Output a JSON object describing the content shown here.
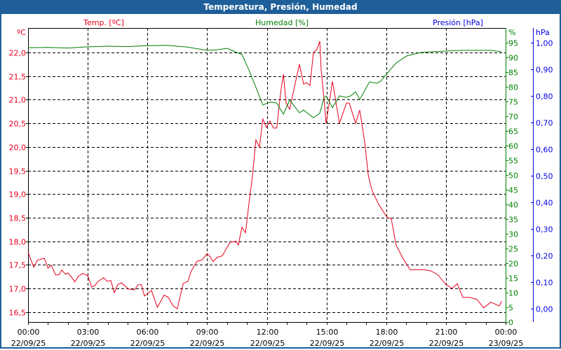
{
  "chart_data": {
    "type": "line",
    "title": "Temperatura, Presión, Humedad",
    "x_unit": "hours since 22/09/25 00:00",
    "x_ticks": [
      {
        "time": "00:00",
        "date": "22/09/25"
      },
      {
        "time": "03:00",
        "date": "22/09/25"
      },
      {
        "time": "06:00",
        "date": "22/09/25"
      },
      {
        "time": "09:00",
        "date": "22/09/25"
      },
      {
        "time": "12:00",
        "date": "22/09/25"
      },
      {
        "time": "15:00",
        "date": "22/09/25"
      },
      {
        "time": "18:00",
        "date": "22/09/25"
      },
      {
        "time": "21:00",
        "date": "22/09/25"
      },
      {
        "time": "00:00",
        "date": "23/09/25"
      }
    ],
    "xlim": [
      0,
      24
    ],
    "grid": true,
    "axes": {
      "temp": {
        "label": "Temp. [ºC]",
        "unit": "ºC",
        "color": "#e8001c",
        "ylim": [
          16.29,
          22.52
        ],
        "ticks": [
          "16,5",
          "17,0",
          "17,5",
          "18,0",
          "18,5",
          "19,0",
          "19,5",
          "20,0",
          "20,5",
          "21,0",
          "21,5",
          "22,0"
        ],
        "tick_values": [
          16.5,
          17,
          17.5,
          18,
          18.5,
          19,
          19.5,
          20,
          20.5,
          21,
          21.5,
          22
        ]
      },
      "hum": {
        "label": "Humedad [%]",
        "unit": "%",
        "color": "#008000",
        "ylim": [
          0,
          100
        ],
        "ticks": [
          "0",
          "5",
          "10",
          "15",
          "20",
          "25",
          "30",
          "35",
          "40",
          "45",
          "50",
          "55",
          "60",
          "65",
          "70",
          "75",
          "80",
          "85",
          "90",
          "95"
        ],
        "tick_values": [
          0,
          5,
          10,
          15,
          20,
          25,
          30,
          35,
          40,
          45,
          50,
          55,
          60,
          65,
          70,
          75,
          80,
          85,
          90,
          95
        ]
      },
      "pres": {
        "label": "Presión [hPa]",
        "unit": "hPa",
        "color": "#0000e0",
        "ylim": [
          -0.05,
          1.055
        ],
        "ticks": [
          "0,00",
          "0,10",
          "0,20",
          "0,30",
          "0,40",
          "0,50",
          "0,60",
          "0,70",
          "0,80",
          "0,90",
          "1,00"
        ],
        "tick_values": [
          0,
          0.1,
          0.2,
          0.3,
          0.4,
          0.5,
          0.6,
          0.7,
          0.8,
          0.9,
          1.0
        ]
      }
    },
    "series": [
      {
        "name": "Temp. [ºC]",
        "axis": "temp",
        "color": "#e8001c",
        "x": [
          0,
          0.29,
          0.47,
          0.82,
          1.0,
          1.17,
          1.38,
          1.55,
          1.7,
          1.88,
          2.0,
          2.2,
          2.35,
          2.53,
          2.75,
          3.0,
          3.2,
          3.35,
          3.52,
          3.8,
          3.98,
          4.16,
          4.34,
          4.5,
          4.7,
          5.04,
          5.35,
          5.53,
          5.7,
          5.85,
          6.0,
          6.2,
          6.5,
          6.84,
          7.05,
          7.3,
          7.5,
          7.8,
          8.03,
          8.2,
          8.5,
          8.74,
          9.0,
          9.16,
          9.3,
          9.5,
          9.76,
          10.15,
          10.45,
          10.57,
          10.75,
          10.93,
          11.1,
          11.28,
          11.45,
          11.63,
          11.8,
          11.98,
          12.16,
          12.33,
          12.5,
          12.69,
          12.83,
          12.97,
          13.15,
          13.4,
          13.64,
          13.85,
          14.0,
          14.17,
          14.34,
          14.52,
          14.66,
          14.73,
          14.87,
          14.98,
          15.08,
          15.3,
          15.44,
          15.65,
          16.0,
          16.14,
          16.46,
          16.67,
          16.92,
          17.1,
          17.27,
          17.6,
          17.9,
          18.08,
          18.25,
          18.5,
          18.85,
          19.2,
          19.56,
          19.9,
          20.26,
          20.6,
          20.97,
          21.3,
          21.57,
          21.85,
          22.2,
          22.55,
          22.9,
          23.26,
          23.68,
          23.8
        ],
        "y": [
          17.77,
          17.45,
          17.6,
          17.64,
          17.43,
          17.49,
          17.29,
          17.29,
          17.39,
          17.3,
          17.33,
          17.23,
          17.14,
          17.26,
          17.32,
          17.27,
          17.03,
          17.06,
          17.15,
          17.23,
          17.15,
          17.17,
          16.91,
          17.08,
          17.12,
          16.99,
          16.97,
          17.08,
          17.08,
          16.84,
          16.89,
          16.96,
          16.6,
          16.86,
          16.81,
          16.63,
          16.57,
          17.11,
          17.15,
          17.37,
          17.58,
          17.6,
          17.74,
          17.67,
          17.57,
          17.66,
          17.69,
          17.98,
          18.0,
          17.92,
          18.3,
          18.18,
          18.8,
          19.4,
          20.15,
          20.0,
          20.59,
          20.41,
          20.55,
          20.4,
          20.4,
          21.14,
          21.54,
          20.93,
          20.8,
          21.29,
          21.75,
          21.33,
          21.36,
          21.3,
          22.0,
          22.07,
          22.24,
          21.63,
          21.04,
          20.5,
          20.78,
          21.39,
          21.04,
          20.5,
          20.93,
          20.93,
          20.5,
          20.78,
          20.1,
          19.4,
          19.1,
          18.8,
          18.6,
          18.49,
          18.49,
          17.92,
          17.63,
          17.4,
          17.4,
          17.4,
          17.37,
          17.29,
          17.1,
          17.0,
          17.1,
          16.81,
          16.81,
          16.77,
          16.59,
          16.71,
          16.63,
          16.73
        ]
      },
      {
        "name": "Humedad [%]",
        "axis": "hum",
        "color": "#008000",
        "x": [
          0,
          1,
          2,
          3,
          4,
          5,
          6,
          7,
          8,
          9,
          9.5,
          10,
          10.4,
          10.75,
          11.1,
          11.45,
          11.8,
          12.16,
          12.5,
          12.83,
          13.15,
          13.64,
          13.85,
          14.34,
          14.66,
          14.87,
          14.98,
          15.3,
          15.65,
          16.0,
          16.21,
          16.46,
          16.67,
          17.16,
          17.52,
          17.73,
          17.97,
          18.5,
          19.03,
          19.74,
          20.8,
          21.85,
          23.26,
          23.8
        ],
        "y": [
          93.3,
          93.4,
          93.2,
          93.6,
          93.8,
          93.7,
          94.0,
          94.1,
          93.5,
          92.4,
          92.6,
          93.1,
          91.9,
          91.0,
          85.7,
          79.8,
          73.8,
          74.8,
          74.5,
          70.7,
          75.5,
          71.2,
          72.1,
          69.5,
          71.0,
          76.2,
          76.9,
          72.9,
          76.9,
          76.4,
          76.9,
          78.3,
          75.7,
          81.7,
          81.2,
          81.9,
          84.0,
          88.1,
          90.5,
          91.7,
          92.1,
          92.4,
          92.4,
          91.9
        ]
      },
      {
        "name": "Presión [hPa]",
        "axis": "pres",
        "color": "#0000e0",
        "x": [],
        "y": []
      }
    ]
  }
}
